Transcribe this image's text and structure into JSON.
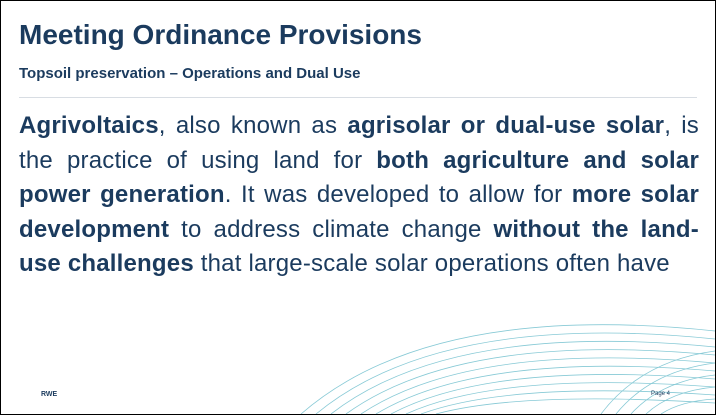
{
  "header": {
    "title": "Meeting Ordinance Provisions",
    "subtitle": "Topsoil preservation – Operations and Dual Use"
  },
  "paragraph": {
    "runs": [
      {
        "text": "Agrivoltaics",
        "bold": true
      },
      {
        "text": ", also known as ",
        "bold": false
      },
      {
        "text": "agrisolar or dual-use solar",
        "bold": true
      },
      {
        "text": ", is the practice of using land for ",
        "bold": false
      },
      {
        "text": "both agriculture and solar power generation",
        "bold": true
      },
      {
        "text": ". It was developed to allow for ",
        "bold": false
      },
      {
        "text": "more solar development",
        "bold": true
      },
      {
        "text": " to address climate change ",
        "bold": false
      },
      {
        "text": "without the land-use challenges",
        "bold": true
      },
      {
        "text": " that large-scale solar operations often have",
        "bold": false
      }
    ]
  },
  "footer": {
    "brand": "RWE",
    "page": "Page 4"
  }
}
